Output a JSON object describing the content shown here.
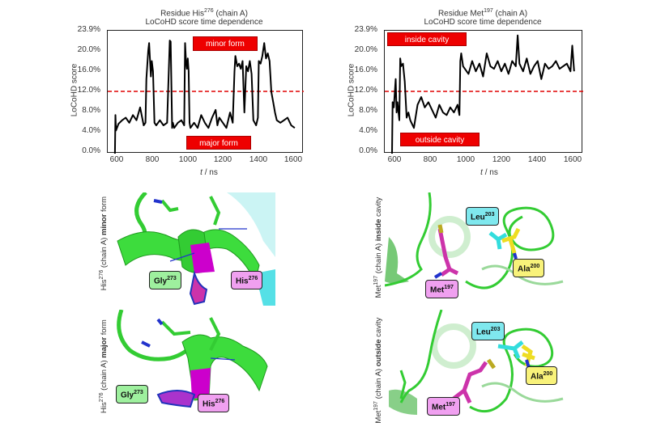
{
  "chart_data": [
    {
      "type": "line",
      "title": "Residue His276 (chain A) LoCoHD score time dependence",
      "title_residue": "His",
      "title_residue_number": "276",
      "title_chain": "(chain A)",
      "subtitle": "LoCoHD score time dependence",
      "xlabel": "t / ns",
      "ylabel": "LoCoHD score",
      "xlim": [
        560,
        1650
      ],
      "ylim": [
        0.0,
        23.9
      ],
      "xticks": [
        "600",
        "800",
        "1000",
        "1200",
        "1400",
        "1600"
      ],
      "yticks": [
        "0.0%",
        "4.0%",
        "8.0%",
        "12.0%",
        "16.0%",
        "20.0%",
        "23.9%"
      ],
      "threshold": {
        "value": 12.0,
        "style": "dashed",
        "color": "#e00000"
      },
      "annotations": [
        {
          "text": "minor form",
          "x_range": [
            1000,
            1360
          ],
          "y_range": [
            20.0,
            22.7
          ]
        },
        {
          "text": "major form",
          "x_range": [
            985,
            1360
          ],
          "y_range": [
            0.8,
            3.6
          ]
        }
      ],
      "series": [
        {
          "name": "His276",
          "color": "#000000",
          "x": [
            600,
            603,
            606,
            620,
            640,
            660,
            680,
            700,
            720,
            740,
            760,
            770,
            775,
            785,
            790,
            800,
            805,
            812,
            820,
            830,
            850,
            870,
            890,
            905,
            910,
            918,
            922,
            930,
            950,
            970,
            985,
            990,
            995,
            1000,
            1005,
            1010,
            1015,
            1020,
            1040,
            1060,
            1080,
            1100,
            1120,
            1140,
            1160,
            1170,
            1180,
            1200,
            1220,
            1240,
            1255,
            1265,
            1270,
            1280,
            1290,
            1300,
            1310,
            1320,
            1330,
            1340,
            1350,
            1360,
            1370,
            1385,
            1395,
            1400,
            1410,
            1420,
            1430,
            1440,
            1450,
            1460,
            1470,
            1480,
            1490,
            1500,
            1520,
            1540,
            1560,
            1580,
            1600
          ],
          "y": [
            0.0,
            7.5,
            4.5,
            5.8,
            6.5,
            7.0,
            6.0,
            7.5,
            6.5,
            9.0,
            5.5,
            6.0,
            14.5,
            20.0,
            21.5,
            15.0,
            18.0,
            16.0,
            6.0,
            5.5,
            6.5,
            5.5,
            6.0,
            22.0,
            21.8,
            5.0,
            6.0,
            5.0,
            6.0,
            6.5,
            5.5,
            21.5,
            18.0,
            16.5,
            18.5,
            16.0,
            6.0,
            5.0,
            6.0,
            5.0,
            7.5,
            6.0,
            5.0,
            7.0,
            8.5,
            5.5,
            7.0,
            6.0,
            5.0,
            8.0,
            6.0,
            16.0,
            19.0,
            17.0,
            17.5,
            16.5,
            18.0,
            8.0,
            17.0,
            16.0,
            18.0,
            15.5,
            6.5,
            5.5,
            7.0,
            18.0,
            17.5,
            19.0,
            21.5,
            18.5,
            19.5,
            18.0,
            12.0,
            10.0,
            8.0,
            6.5,
            6.0,
            6.5,
            7.0,
            5.5,
            5.0
          ]
        }
      ]
    },
    {
      "type": "line",
      "title": "Residue Met197 (chain A) LoCoHD score time dependence",
      "title_residue": "Met",
      "title_residue_number": "197",
      "title_chain": "(chain A)",
      "subtitle": "LoCoHD score time dependence",
      "xlabel": "t / ns",
      "ylabel": "LoCoHD score",
      "xlim": [
        560,
        1650
      ],
      "ylim": [
        0.0,
        23.9
      ],
      "xticks": [
        "600",
        "800",
        "1000",
        "1200",
        "1400",
        "1600"
      ],
      "yticks": [
        "0.0%",
        "4.0%",
        "8.0%",
        "12.0%",
        "16.0%",
        "20.0%",
        "23.9%"
      ],
      "threshold": {
        "value": 12.0,
        "style": "dashed",
        "color": "#e00000"
      },
      "annotations": [
        {
          "text": "inside cavity",
          "x_range": [
            570,
            980
          ],
          "y_range": [
            21.3,
            23.6
          ]
        },
        {
          "text": "outside cavity",
          "x_range": [
            640,
            1080
          ],
          "y_range": [
            1.2,
            3.8
          ]
        }
      ],
      "series": [
        {
          "name": "Met197",
          "color": "#000000",
          "x": [
            600,
            603,
            610,
            620,
            625,
            630,
            640,
            645,
            650,
            660,
            670,
            680,
            690,
            700,
            720,
            740,
            760,
            780,
            800,
            820,
            840,
            860,
            880,
            900,
            920,
            940,
            960,
            970,
            975,
            980,
            990,
            1000,
            1020,
            1040,
            1060,
            1080,
            1100,
            1120,
            1140,
            1160,
            1180,
            1200,
            1220,
            1240,
            1260,
            1280,
            1290,
            1300,
            1320,
            1340,
            1360,
            1380,
            1400,
            1420,
            1440,
            1460,
            1480,
            1500,
            1520,
            1540,
            1560,
            1580,
            1590,
            1600
          ],
          "y": [
            0.0,
            10.0,
            9.0,
            14.5,
            8.0,
            10.0,
            6.5,
            18.5,
            17.0,
            17.5,
            14.0,
            7.0,
            8.0,
            6.5,
            5.0,
            9.5,
            11.0,
            9.0,
            10.0,
            8.5,
            7.0,
            9.5,
            8.0,
            7.5,
            9.0,
            8.0,
            9.5,
            7.5,
            18.0,
            19.5,
            17.0,
            16.5,
            15.5,
            18.0,
            16.0,
            17.5,
            15.0,
            19.5,
            17.0,
            16.5,
            18.0,
            16.0,
            17.5,
            15.5,
            18.0,
            17.0,
            23.0,
            17.5,
            16.0,
            18.5,
            15.5,
            17.0,
            18.0,
            14.5,
            17.5,
            16.5,
            17.0,
            18.0,
            16.5,
            17.0,
            17.5,
            16.0,
            21.0,
            16.0
          ]
        }
      ]
    }
  ],
  "figure": {
    "left_chart": {
      "title_prefix": "Residue ",
      "residue": "His",
      "number": "276",
      "chain": " (chain A)",
      "subtitle": "LoCoHD score time dependence",
      "ylabel": "LoCoHD score",
      "xlabel_var": "t",
      "xlabel_unit": " / ns",
      "box_top": "minor form",
      "box_bottom": "major form"
    },
    "right_chart": {
      "title_prefix": "Residue ",
      "residue": "Met",
      "number": "197",
      "chain": " (chain A)",
      "subtitle": "LoCoHD score time dependence",
      "ylabel": "LoCoHD score",
      "xlabel_var": "t",
      "xlabel_unit": " / ns",
      "box_top": "inside cavity",
      "box_bottom": "outside cavity"
    },
    "yticks": [
      "23.9%",
      "20.0%",
      "16.0%",
      "12.0%",
      "8.0%",
      "4.0%",
      "0.0%"
    ],
    "xticks": [
      "600",
      "800",
      "1000",
      "1200",
      "1400",
      "1600"
    ],
    "panels": {
      "his_minor": {
        "side_residue": "His",
        "side_number": "276",
        "side_chain": " (chain A) ",
        "side_state": "minor",
        "side_suffix": " form",
        "labels": [
          {
            "name": "Gly",
            "num": "273",
            "color": "#9ef09e"
          },
          {
            "name": "His",
            "num": "276",
            "color": "#f0a0f0"
          }
        ]
      },
      "his_major": {
        "side_residue": "His",
        "side_number": "276",
        "side_chain": " (chain A) ",
        "side_state": "major",
        "side_suffix": " form",
        "labels": [
          {
            "name": "Gly",
            "num": "273",
            "color": "#9ef09e"
          },
          {
            "name": "His",
            "num": "276",
            "color": "#f0a0f0"
          }
        ]
      },
      "met_inside": {
        "side_residue": "Met",
        "side_number": "197",
        "side_chain": " (chain A) ",
        "side_state": "inside",
        "side_suffix": " cavity",
        "labels": [
          {
            "name": "Leu",
            "num": "203",
            "color": "#7fe8ee"
          },
          {
            "name": "Ala",
            "num": "200",
            "color": "#f8f27a"
          },
          {
            "name": "Met",
            "num": "197",
            "color": "#f0a0f0"
          }
        ]
      },
      "met_outside": {
        "side_residue": "Met",
        "side_number": "197",
        "side_chain": " (chain A) ",
        "side_state": "outside",
        "side_suffix": " cavity",
        "labels": [
          {
            "name": "Leu",
            "num": "203",
            "color": "#7fe8ee"
          },
          {
            "name": "Ala",
            "num": "200",
            "color": "#f8f27a"
          },
          {
            "name": "Met",
            "num": "197",
            "color": "#f0a0f0"
          }
        ]
      }
    },
    "colors": {
      "threshold": "#e00000",
      "annotation_box": "#ee0000",
      "trace": "#000000",
      "ribbon": "#33cc33",
      "his_highlight": "#cc00cc",
      "leu_stick": "#33dddd",
      "ala_stick": "#eedd22"
    }
  }
}
